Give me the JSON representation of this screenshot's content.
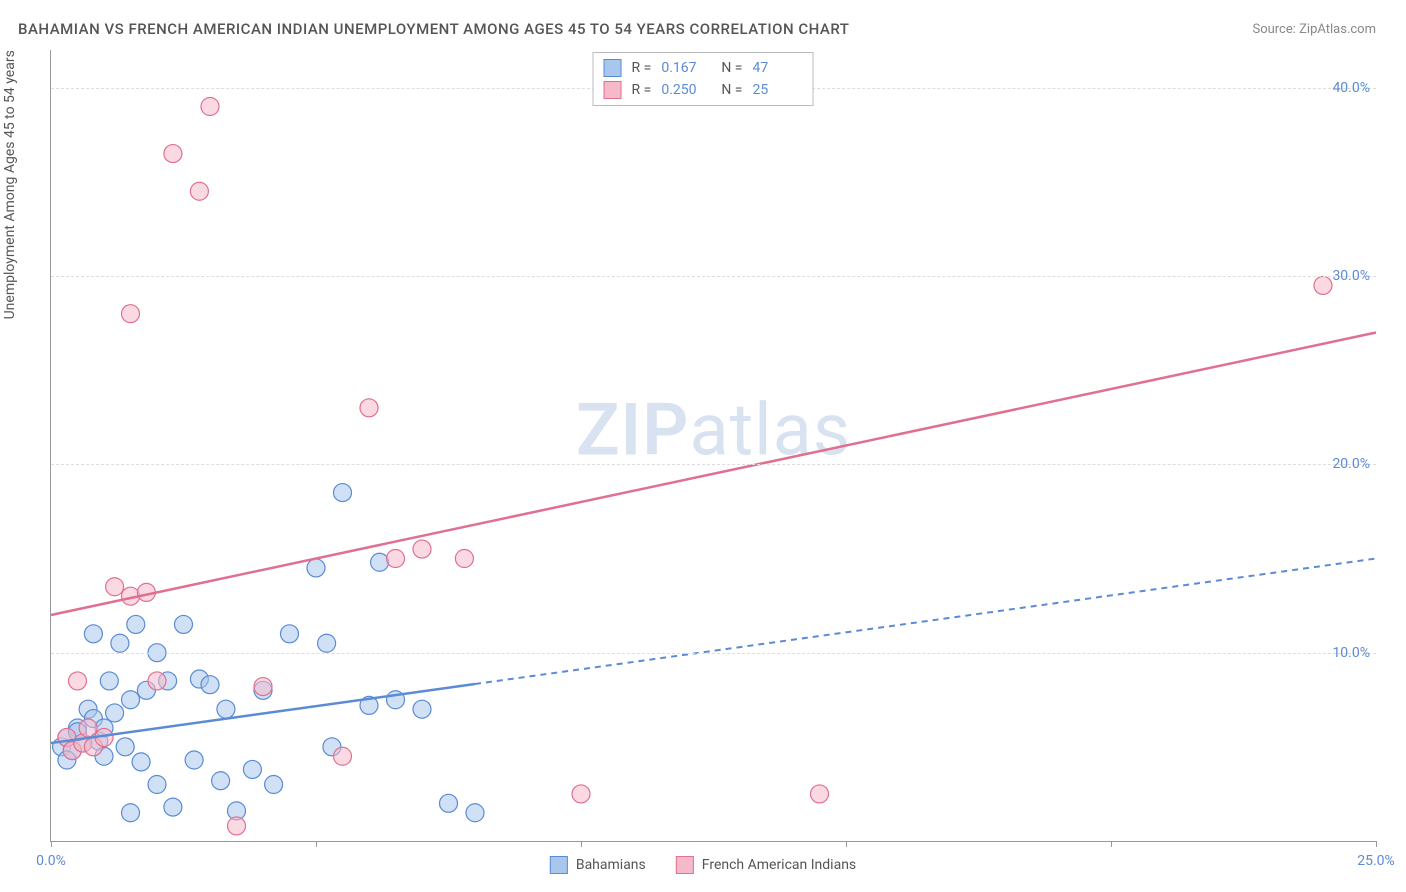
{
  "title": "BAHAMIAN VS FRENCH AMERICAN INDIAN UNEMPLOYMENT AMONG AGES 45 TO 54 YEARS CORRELATION CHART",
  "source": "Source: ZipAtlas.com",
  "y_axis_label": "Unemployment Among Ages 45 to 54 years",
  "watermark": {
    "bold": "ZIP",
    "light": "atlas"
  },
  "chart": {
    "type": "scatter",
    "xlim": [
      0,
      25
    ],
    "ylim": [
      0,
      42
    ],
    "x_ticks": [
      0,
      5,
      10,
      15,
      20,
      25
    ],
    "x_tick_labels": [
      "0.0%",
      "",
      "",
      "",
      "",
      "25.0%"
    ],
    "y_gridlines": [
      10,
      20,
      30,
      40
    ],
    "y_labels": [
      "10.0%",
      "20.0%",
      "30.0%",
      "40.0%"
    ],
    "background_color": "#ffffff",
    "grid_color": "#dddddd",
    "axis_color": "#999999",
    "marker_radius": 9,
    "marker_opacity": 0.55,
    "series": [
      {
        "name": "Bahamians",
        "color": "#6fa3e0",
        "fill": "#a9c7ec",
        "stroke": "#5b8bd4",
        "r_value": "0.167",
        "n_value": "47",
        "trend": {
          "x1": 0,
          "y1": 5.2,
          "x2": 25,
          "y2": 15.0,
          "solid_until_x": 8.0
        },
        "points": [
          [
            0.2,
            5.0
          ],
          [
            0.3,
            5.5
          ],
          [
            0.4,
            4.8
          ],
          [
            0.5,
            6.0
          ],
          [
            0.6,
            5.2
          ],
          [
            0.7,
            7.0
          ],
          [
            0.8,
            11.0
          ],
          [
            0.9,
            5.3
          ],
          [
            1.0,
            4.5
          ],
          [
            1.1,
            8.5
          ],
          [
            1.2,
            6.8
          ],
          [
            1.3,
            10.5
          ],
          [
            1.4,
            5.0
          ],
          [
            1.5,
            7.5
          ],
          [
            1.5,
            1.5
          ],
          [
            1.6,
            11.5
          ],
          [
            1.7,
            4.2
          ],
          [
            1.8,
            8.0
          ],
          [
            2.0,
            10.0
          ],
          [
            2.0,
            3.0
          ],
          [
            2.2,
            8.5
          ],
          [
            2.3,
            1.8
          ],
          [
            2.5,
            11.5
          ],
          [
            2.7,
            4.3
          ],
          [
            2.8,
            8.6
          ],
          [
            3.0,
            8.3
          ],
          [
            3.2,
            3.2
          ],
          [
            3.3,
            7.0
          ],
          [
            3.5,
            1.6
          ],
          [
            3.8,
            3.8
          ],
          [
            4.0,
            8.0
          ],
          [
            4.2,
            3.0
          ],
          [
            4.5,
            11.0
          ],
          [
            5.0,
            14.5
          ],
          [
            5.2,
            10.5
          ],
          [
            5.3,
            5.0
          ],
          [
            5.5,
            18.5
          ],
          [
            6.0,
            7.2
          ],
          [
            6.2,
            14.8
          ],
          [
            6.5,
            7.5
          ],
          [
            7.0,
            7.0
          ],
          [
            7.5,
            2.0
          ],
          [
            8.0,
            1.5
          ],
          [
            0.3,
            4.3
          ],
          [
            0.5,
            5.8
          ],
          [
            0.8,
            6.5
          ],
          [
            1.0,
            6.0
          ]
        ]
      },
      {
        "name": "French American Indians",
        "color": "#e890a8",
        "fill": "#f5b9ca",
        "stroke": "#e07090",
        "r_value": "0.250",
        "n_value": "25",
        "trend": {
          "x1": 0,
          "y1": 12.0,
          "x2": 25,
          "y2": 27.0,
          "solid_until_x": 25
        },
        "points": [
          [
            0.3,
            5.5
          ],
          [
            0.4,
            4.8
          ],
          [
            0.5,
            8.5
          ],
          [
            0.6,
            5.2
          ],
          [
            0.7,
            6.0
          ],
          [
            0.8,
            5.0
          ],
          [
            1.0,
            5.5
          ],
          [
            1.2,
            13.5
          ],
          [
            1.5,
            13.0
          ],
          [
            1.5,
            28.0
          ],
          [
            2.0,
            8.5
          ],
          [
            2.3,
            36.5
          ],
          [
            2.8,
            34.5
          ],
          [
            3.0,
            39.0
          ],
          [
            3.5,
            0.8
          ],
          [
            4.0,
            8.2
          ],
          [
            5.5,
            4.5
          ],
          [
            6.0,
            23.0
          ],
          [
            6.5,
            15.0
          ],
          [
            7.0,
            15.5
          ],
          [
            7.8,
            15.0
          ],
          [
            10.0,
            2.5
          ],
          [
            14.5,
            2.5
          ],
          [
            24.0,
            29.5
          ],
          [
            1.8,
            13.2
          ]
        ]
      }
    ]
  },
  "stats_labels": {
    "r": "R  =",
    "n": "N  ="
  },
  "legend_title": {
    "s1": "Bahamians",
    "s2": "French American Indians"
  }
}
